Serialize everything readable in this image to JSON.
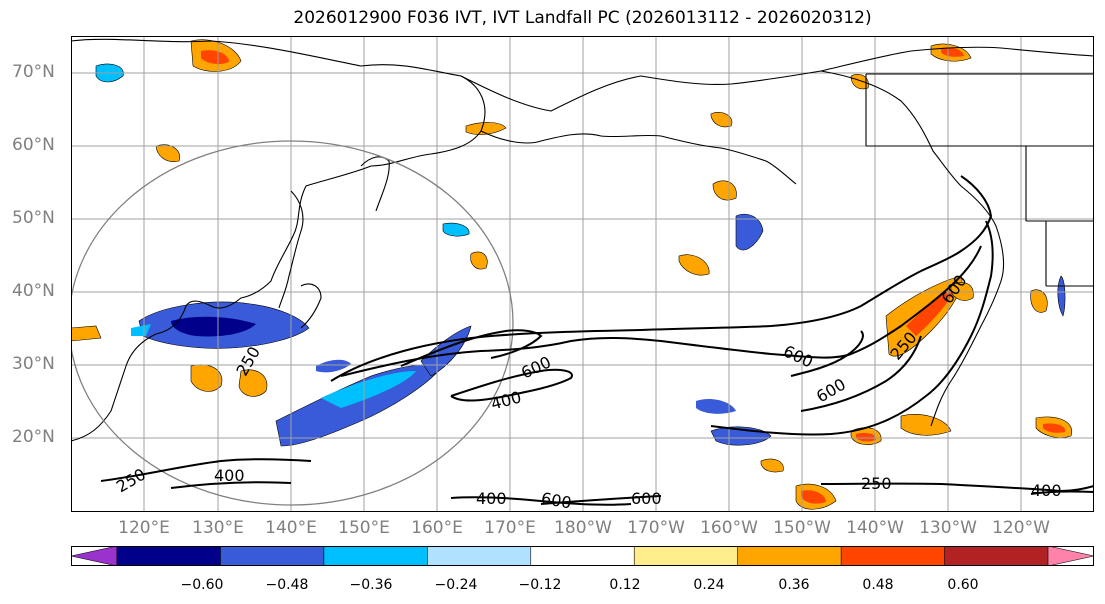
{
  "title": "2026012900 F036 IVT, IVT Landfall PC (2026013112 - 2026020312)",
  "lat_labels": [
    "70°N",
    "60°N",
    "50°N",
    "40°N",
    "30°N",
    "20°N"
  ],
  "lon_labels": [
    "120°E",
    "130°E",
    "140°E",
    "150°E",
    "160°E",
    "170°E",
    "180°W",
    "170°W",
    "160°W",
    "150°W",
    "140°W",
    "130°W",
    "120°W"
  ],
  "contour_labels": [
    "250",
    "400",
    "600",
    "600",
    "400",
    "600",
    "250",
    "250",
    "600",
    "600",
    "400",
    "600",
    "250",
    "400"
  ],
  "colorbar": {
    "ticks": [
      "−0.60",
      "−0.48",
      "−0.36",
      "−0.24",
      "−0.12",
      "0.12",
      "0.24",
      "0.36",
      "0.48",
      "0.60"
    ],
    "colors": [
      "#9a32cd",
      "#00008b",
      "#3a5bd9",
      "#00bfff",
      "#b0e2ff",
      "#ffffff",
      "#ffec8b",
      "#ffa500",
      "#ff4500",
      "#b22222",
      "#ff82ab"
    ]
  },
  "colors": {
    "contour": "#000000",
    "coast": "#000000",
    "grid": "#a0a0a0",
    "circle": "#808080"
  }
}
